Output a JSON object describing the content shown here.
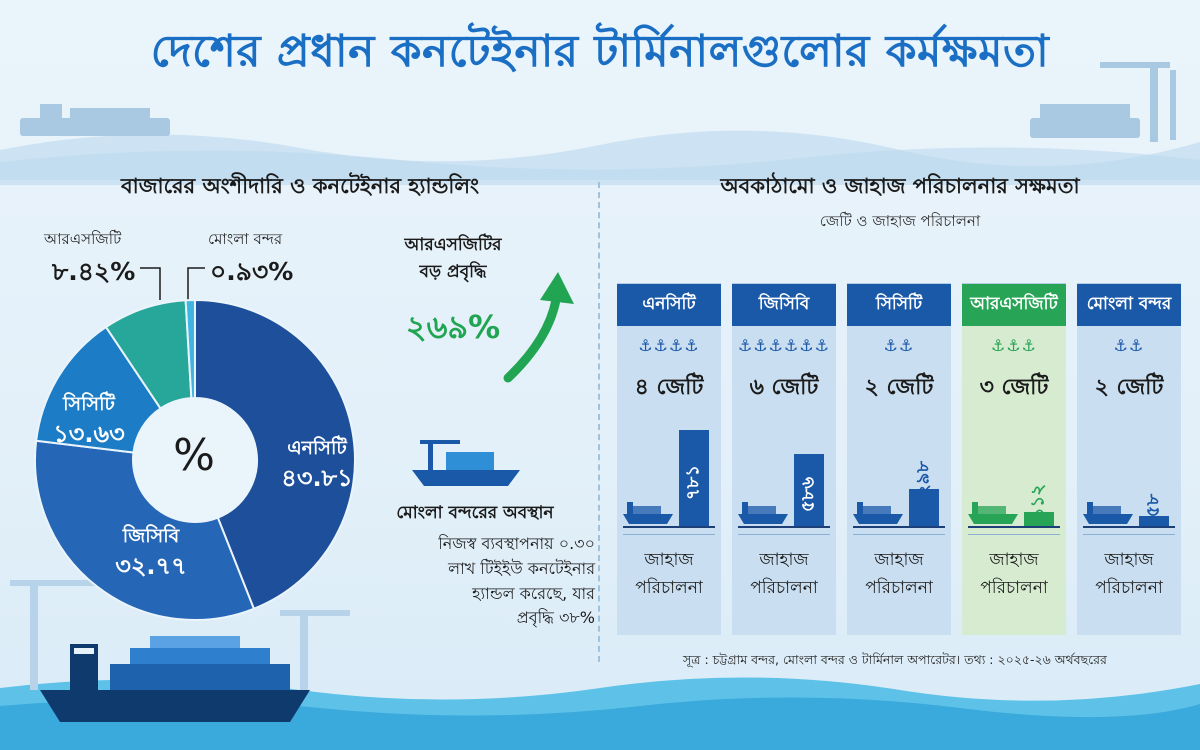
{
  "title": "দেশের প্রধান কনটেইনার টার্মিনালগুলোর কর্মক্ষমতা",
  "left_section": {
    "heading": "বাজারের অংশীদারি ও কনটেইনার হ্যান্ডলিং",
    "center_symbol": "%",
    "callouts": [
      {
        "label": "আরএসজিটি",
        "value": "৮.৪২%"
      },
      {
        "label": "মোংলা বন্দর",
        "value": "০.৯৩%"
      }
    ],
    "slice_labels": [
      {
        "label": "এনসিটি",
        "value": "৪৩.৮১"
      },
      {
        "label": "জিসিবি",
        "value": "৩২.৭৭"
      },
      {
        "label": "সিসিটি",
        "value": "১৩.৬৩"
      }
    ],
    "growth": {
      "label_line1": "আরএসজিটির",
      "label_line2": "বড় প্রবৃদ্ধি",
      "value": "২৬৯%"
    },
    "mongla": {
      "title": "মোংলা বন্দরের অবস্থান",
      "lines": [
        "নিজস্ব ব্যবস্থাপনায় ০.৩০",
        "লাখ টিইইউ কনটেইনার",
        "হ্যান্ডল করেছে, যার",
        "প্রবৃদ্ধি ৩৮%"
      ]
    }
  },
  "right_section": {
    "heading": "অবকাঠামো ও জাহাজ পরিচালনার সক্ষমতা",
    "subheading": "জেটি ও জাহাজ পরিচালনা",
    "op_line1": "জাহাজ",
    "op_line2": "পরিচালনা",
    "source": "সূত্র : চট্টগ্রাম বন্দর, মোংলা বন্দর ও টার্মিনাল অপারেটর। তথ্য : ২০২৫-২৬ অর্থবছরের"
  },
  "colors": {
    "title": "#1a6fc4",
    "nct": "#1d4f9b",
    "gcb": "#2566b6",
    "cct": "#1d7cc6",
    "rsgt": "#27a79a",
    "mongla": "#3fb5e3",
    "growth": "#21a552",
    "card_head": "#1a58a8",
    "card_head_highlight": "#27a455"
  },
  "chart_data": [
    {
      "type": "pie",
      "title": "বাজারের অংশীদারি ও কনটেইনার হ্যান্ডলিং",
      "unit": "%",
      "categories": [
        "এনসিটি",
        "জিসিবি",
        "সিসিটি",
        "আরএসজিটি",
        "মোংলা বন্দর"
      ],
      "values": [
        43.81,
        32.77,
        13.63,
        8.42,
        0.93
      ]
    },
    {
      "type": "bar",
      "title": "অবকাঠামো ও জাহাজ পরিচালনার সক্ষমতা",
      "subtitle": "জেটি ও জাহাজ পরিচালনা",
      "categories": [
        "এনসিটি",
        "জিসিবি",
        "সিসিটি",
        "আরএসজিটি",
        "মোংলা বন্দর"
      ],
      "jetty_labels": [
        "৪ জেটি",
        "৬ জেটি",
        "২ জেটি",
        "৩ জেটি",
        "২ জেটি"
      ],
      "jetty_counts": [
        4,
        6,
        2,
        3,
        2
      ],
      "values": [
        781,
        586,
        298,
        112,
        58
      ],
      "value_labels": [
        "৭৮১",
        "৫৮৬",
        "২৯৮",
        "১১২",
        "৫৮"
      ],
      "xlabel": "জাহাজ পরিচালনা",
      "highlight": "আরএসজিটি"
    }
  ]
}
